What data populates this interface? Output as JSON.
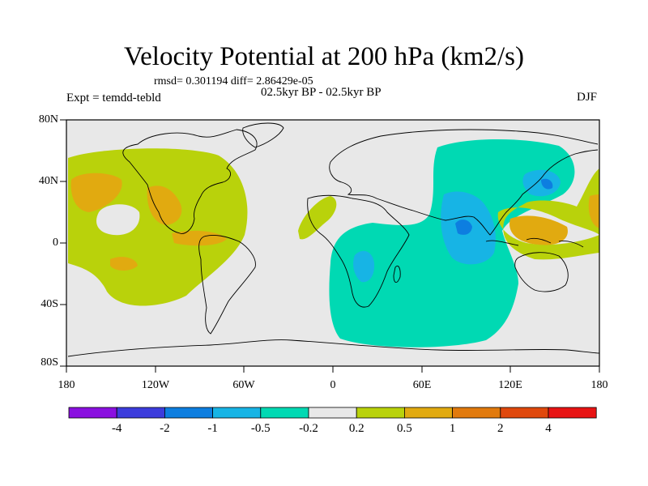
{
  "title": "Velocity Potential at 200 hPa (km2/s)",
  "stats": "rmsd= 0.301194 diff= 2.86429e-05",
  "expt": "Expt = temdd-tebld",
  "period": "02.5kyr BP - 02.5kyr BP",
  "season": "DJF",
  "map": {
    "lat_ticks": [
      "80N",
      "40N",
      "0",
      "40S",
      "80S"
    ],
    "lon_ticks": [
      "180",
      "120W",
      "60W",
      "0",
      "60E",
      "120E",
      "180"
    ],
    "colors": {
      "background": "#e8e8e8",
      "pos_low": "#b9d20b",
      "pos_mid": "#e1aa10",
      "neg_low": "#00d9b3",
      "neg_mid": "#17b4e5",
      "neg_high": "#0d7ee0"
    }
  },
  "colorbar": {
    "colors": [
      "#8a10e0",
      "#3c3cdc",
      "#0d7ee0",
      "#17b4e5",
      "#00d9b3",
      "#e8e8e8",
      "#b9d20b",
      "#e1aa10",
      "#e17a0d",
      "#e0480c",
      "#e81313"
    ],
    "labels": [
      "-4",
      "-2",
      "-1",
      "-0.5",
      "-0.2",
      "0.2",
      "0.5",
      "1",
      "2",
      "4"
    ]
  }
}
